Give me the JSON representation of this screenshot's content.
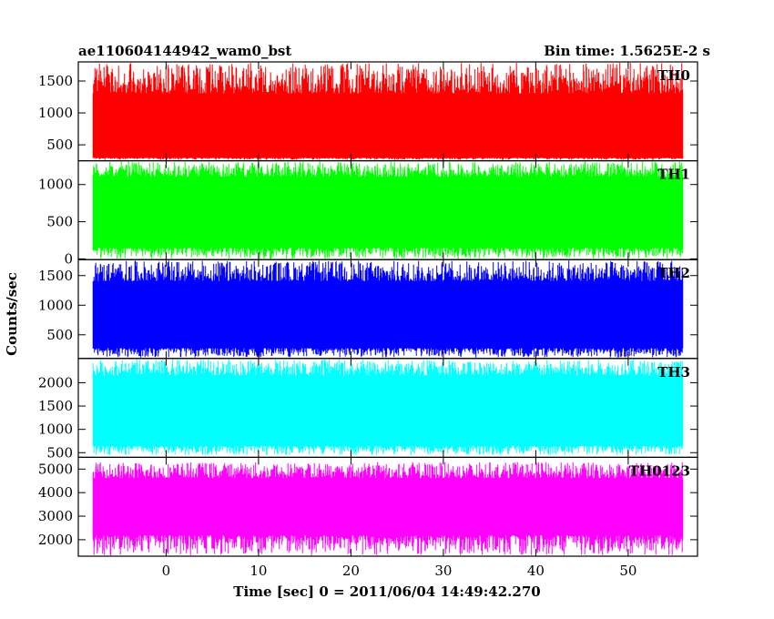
{
  "chart_data": {
    "type": "line",
    "title_left": "ae110604144942_wam0_bst",
    "title_right": "Bin time: 1.5625E-2 s",
    "xlabel": "Time [sec] 0 = 2011/06/04 14:49:42.270",
    "ylabel": "Counts/sec",
    "xlim": [
      -9.5,
      57.5
    ],
    "x_ticks": [
      0,
      10,
      20,
      30,
      40,
      50
    ],
    "x_tick_labels": [
      "0",
      "10",
      "20",
      "30",
      "40",
      "50"
    ],
    "data_x_range": [
      -7.9,
      55.9
    ],
    "grid": false,
    "panels": [
      {
        "name": "TH0",
        "color": "#ff0000",
        "ylim": [
          250,
          1800
        ],
        "y_ticks": [
          500,
          1000,
          1500
        ],
        "y_tick_labels": [
          "500",
          "1000",
          "1500"
        ],
        "band": [
          300,
          1300
        ],
        "spike_max": 1800,
        "spike_min": 150
      },
      {
        "name": "TH1",
        "color": "#00ff00",
        "ylim": [
          -10,
          1320
        ],
        "y_ticks": [
          0,
          500,
          1000
        ],
        "y_tick_labels": [
          "0",
          "500",
          "1000"
        ],
        "band": [
          150,
          1100
        ],
        "spike_max": 1320,
        "spike_min": 0
      },
      {
        "name": "TH2",
        "color": "#0000ff",
        "ylim": [
          100,
          1770
        ],
        "y_ticks": [
          500,
          1000,
          1500
        ],
        "y_tick_labels": [
          "500",
          "1000",
          "1500"
        ],
        "band": [
          280,
          1400
        ],
        "spike_max": 1770,
        "spike_min": 110
      },
      {
        "name": "TH3",
        "color": "#00ffff",
        "ylim": [
          400,
          2520
        ],
        "y_ticks": [
          500,
          1000,
          1500,
          2000
        ],
        "y_tick_labels": [
          "500",
          "1000",
          "1500",
          "2000"
        ],
        "band": [
          650,
          2150
        ],
        "spike_max": 2520,
        "spike_min": 450
      },
      {
        "name": "TH0123",
        "color": "#ff00ff",
        "ylim": [
          1300,
          5500
        ],
        "y_ticks": [
          2000,
          3000,
          4000,
          5000
        ],
        "y_tick_labels": [
          "2000",
          "3000",
          "4000",
          "5000"
        ],
        "band": [
          2200,
          4600
        ],
        "spike_max": 5300,
        "spike_min": 1300
      }
    ]
  }
}
